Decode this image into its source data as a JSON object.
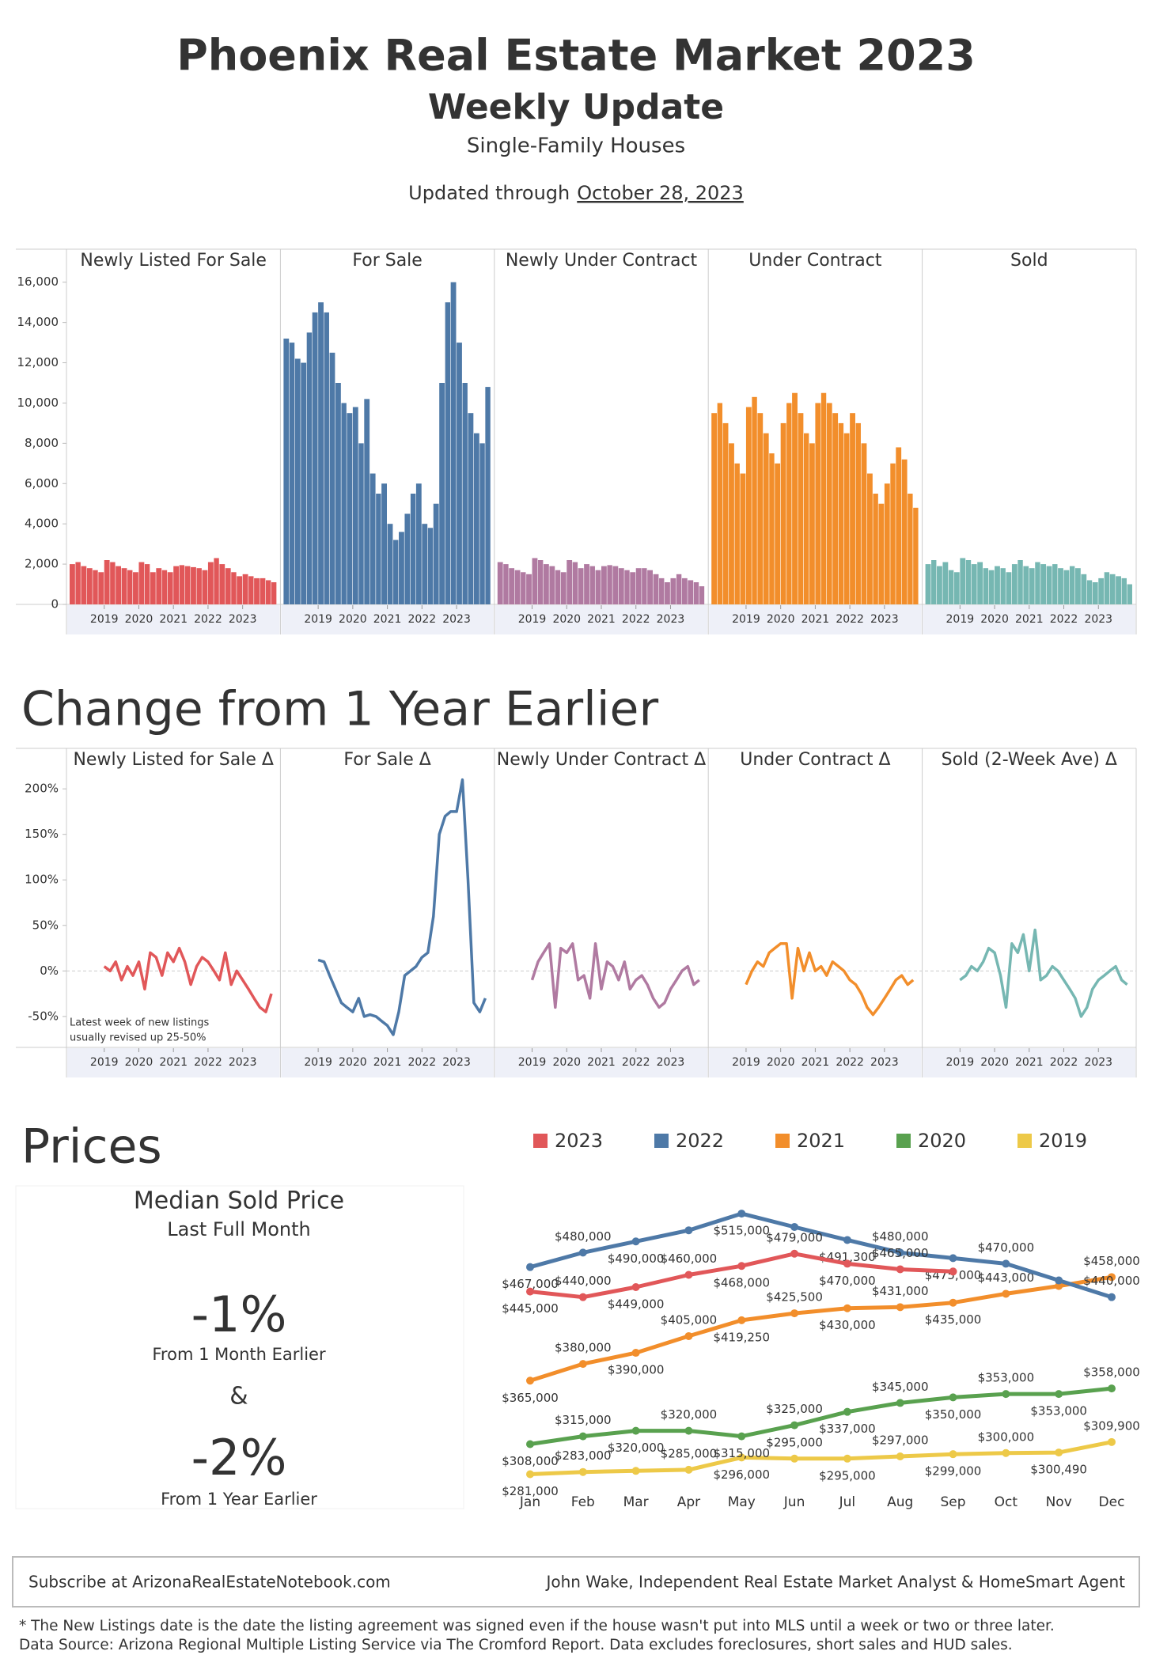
{
  "header": {
    "title": "Phoenix Real Estate Market 2023",
    "subtitle": "Weekly Update",
    "category": "Single-Family Houses",
    "updated_prefix": "Updated through",
    "updated_date": "October 28, 2023"
  },
  "chart_data": [
    {
      "type": "bar",
      "x": [
        2018,
        2018.17,
        2018.33,
        2018.5,
        2018.67,
        2018.83,
        2019,
        2019.17,
        2019.33,
        2019.5,
        2019.67,
        2019.83,
        2020,
        2020.17,
        2020.33,
        2020.5,
        2020.67,
        2020.83,
        2021,
        2021.17,
        2021.33,
        2021.5,
        2021.67,
        2021.83,
        2022,
        2022.17,
        2022.33,
        2022.5,
        2022.67,
        2022.83,
        2023,
        2023.17,
        2023.33,
        2023.5,
        2023.67,
        2023.83
      ],
      "xlim": [
        2018,
        2024
      ],
      "xticks": [
        2019,
        2020,
        2021,
        2022,
        2023
      ],
      "ylim": [
        0,
        16500
      ],
      "yticks": [
        0,
        {
          "value": 2000,
          "label": "2,000"
        },
        {
          "value": 4000,
          "label": "4,000"
        },
        {
          "value": 6000,
          "label": "6,000"
        },
        {
          "value": 8000,
          "label": "8,000"
        },
        {
          "value": 10000,
          "label": "10,000"
        },
        {
          "value": 12000,
          "label": "12,000"
        },
        {
          "value": 14000,
          "label": "14,000"
        },
        {
          "value": 16000,
          "label": "16,000"
        }
      ],
      "series": [
        {
          "name": "Newly Listed For Sale",
          "color": "#e15759",
          "values": [
            2000,
            2100,
            1900,
            1800,
            1700,
            1600,
            2200,
            2100,
            1900,
            1800,
            1700,
            1600,
            2100,
            2000,
            1600,
            1800,
            1700,
            1600,
            1900,
            1950,
            1900,
            1850,
            1800,
            1700,
            2100,
            2300,
            2000,
            1800,
            1600,
            1400,
            1500,
            1400,
            1300,
            1300,
            1200,
            1100
          ]
        },
        {
          "name": "For Sale",
          "color": "#4e79a7",
          "values": [
            13200,
            13000,
            12200,
            12000,
            13500,
            14500,
            15000,
            14500,
            12500,
            11000,
            10000,
            9500,
            9800,
            8000,
            10200,
            6500,
            5500,
            6000,
            4000,
            3200,
            3600,
            4500,
            5500,
            6000,
            4000,
            3800,
            5000,
            11000,
            15000,
            16000,
            13000,
            11000,
            9500,
            8500,
            8000,
            10800
          ]
        },
        {
          "name": "Newly Under Contract",
          "color": "#b07aa1",
          "values": [
            2100,
            2000,
            1800,
            1700,
            1600,
            1500,
            2300,
            2200,
            2000,
            1900,
            1700,
            1600,
            2200,
            2100,
            1800,
            2000,
            1900,
            1700,
            1900,
            1950,
            1900,
            1800,
            1700,
            1600,
            1800,
            1800,
            1700,
            1500,
            1300,
            1100,
            1300,
            1500,
            1300,
            1200,
            1100,
            900
          ]
        },
        {
          "name": "Under Contract",
          "color": "#f28e2b",
          "values": [
            9500,
            10000,
            9000,
            8000,
            7000,
            6500,
            9800,
            10300,
            9500,
            8500,
            7500,
            7000,
            9000,
            10000,
            10500,
            9500,
            8500,
            8000,
            10000,
            10500,
            10000,
            9500,
            9000,
            8500,
            9500,
            9000,
            8000,
            6500,
            5500,
            5000,
            6000,
            7000,
            7800,
            7200,
            5500,
            4800
          ]
        },
        {
          "name": "Sold",
          "color": "#76b7b2",
          "values": [
            2000,
            2200,
            1900,
            2100,
            1700,
            1600,
            2300,
            2200,
            2000,
            2100,
            1800,
            1700,
            1900,
            1800,
            1600,
            2000,
            2200,
            1900,
            1800,
            2100,
            2000,
            1900,
            2000,
            1800,
            1700,
            1900,
            1800,
            1500,
            1200,
            1100,
            1300,
            1600,
            1500,
            1400,
            1300,
            1000
          ]
        }
      ]
    },
    {
      "type": "line",
      "title": "Change from 1 Year Earlier",
      "annotation": [
        "Latest week of new listings",
        "usually revised up 25-50%"
      ],
      "x": [
        2018,
        2018.17,
        2018.33,
        2018.5,
        2018.67,
        2018.83,
        2019,
        2019.17,
        2019.33,
        2019.5,
        2019.67,
        2019.83,
        2020,
        2020.17,
        2020.33,
        2020.5,
        2020.67,
        2020.83,
        2021,
        2021.17,
        2021.33,
        2021.5,
        2021.67,
        2021.83,
        2022,
        2022.17,
        2022.33,
        2022.5,
        2022.67,
        2022.83,
        2023,
        2023.17,
        2023.33,
        2023.5,
        2023.67,
        2023.83
      ],
      "xlim": [
        2018,
        2024
      ],
      "xticks": [
        2019,
        2020,
        2021,
        2022,
        2023
      ],
      "ylim": [
        -84,
        221
      ],
      "yticks": [
        {
          "value": -50,
          "label": "-50%"
        },
        {
          "value": 0,
          "label": "0%"
        },
        {
          "value": 50,
          "label": "50%"
        },
        {
          "value": 100,
          "label": "100%"
        },
        {
          "value": 150,
          "label": "150%"
        },
        {
          "value": 200,
          "label": "200%"
        }
      ],
      "series": [
        {
          "name": "Newly Listed for Sale Δ",
          "color": "#e15759",
          "values": [
            null,
            null,
            null,
            null,
            null,
            null,
            5,
            0,
            10,
            -10,
            5,
            -5,
            10,
            -20,
            20,
            15,
            -5,
            20,
            10,
            25,
            10,
            -15,
            5,
            15,
            10,
            0,
            -10,
            20,
            -15,
            0,
            -10,
            -20,
            -30,
            -40,
            -45,
            -25
          ]
        },
        {
          "name": "For Sale Δ",
          "color": "#4e79a7",
          "values": [
            null,
            null,
            null,
            null,
            null,
            null,
            12,
            10,
            -5,
            -20,
            -35,
            -40,
            -45,
            -30,
            -50,
            -48,
            -50,
            -55,
            -60,
            -70,
            -45,
            -5,
            0,
            5,
            15,
            20,
            60,
            150,
            170,
            175,
            175,
            210,
            100,
            -35,
            -45,
            -30
          ]
        },
        {
          "name": "Newly Under Contract Δ",
          "color": "#b07aa1",
          "values": [
            null,
            null,
            null,
            null,
            null,
            null,
            -10,
            10,
            20,
            30,
            -40,
            25,
            20,
            30,
            -10,
            -5,
            -30,
            30,
            -20,
            10,
            5,
            -10,
            10,
            -20,
            -10,
            -5,
            -15,
            -30,
            -40,
            -35,
            -20,
            -10,
            0,
            5,
            -15,
            -10
          ]
        },
        {
          "name": "Under Contract Δ",
          "color": "#f28e2b",
          "values": [
            null,
            null,
            null,
            null,
            null,
            null,
            -15,
            0,
            10,
            5,
            20,
            25,
            30,
            30,
            -30,
            25,
            0,
            20,
            0,
            5,
            -5,
            10,
            5,
            0,
            -10,
            -15,
            -25,
            -40,
            -48,
            -40,
            -30,
            -20,
            -10,
            -5,
            -15,
            -10
          ]
        },
        {
          "name": "Sold (2-Week Ave) Δ",
          "color": "#76b7b2",
          "values": [
            null,
            null,
            null,
            null,
            null,
            null,
            -10,
            -5,
            5,
            0,
            10,
            25,
            20,
            -5,
            -40,
            30,
            20,
            40,
            0,
            45,
            -10,
            -5,
            5,
            0,
            -10,
            -20,
            -30,
            -50,
            -40,
            -20,
            -10,
            -5,
            0,
            5,
            -10,
            -15
          ]
        }
      ]
    },
    {
      "type": "line",
      "title": "Prices",
      "categories": [
        "Jan",
        "Feb",
        "Mar",
        "Apr",
        "May",
        "Jun",
        "Jul",
        "Aug",
        "Sep",
        "Oct",
        "Nov",
        "Dec"
      ],
      "ylim": [
        270000,
        525000
      ],
      "series": [
        {
          "name": "2023",
          "color": "#e15759",
          "values": [
            445000,
            440000,
            449000,
            460000,
            468000,
            479000,
            470000,
            465000,
            463000,
            null,
            null,
            null
          ],
          "value_labels": [
            "$445,000",
            "$440,000",
            "$449,000",
            "$460,000",
            "$468,000",
            "$479,000",
            "$470,000",
            "$465,000",
            null,
            null,
            null,
            null
          ]
        },
        {
          "name": "2022",
          "color": "#4e79a7",
          "values": [
            467000,
            480000,
            490000,
            500000,
            515000,
            503000,
            491300,
            480000,
            475000,
            470000,
            455000,
            440000
          ],
          "value_labels": [
            "$467,000",
            "$480,000",
            "$490,000",
            null,
            "$515,000",
            null,
            "$491,300",
            "$480,000",
            "$475,000",
            "$470,000",
            null,
            "$440,000"
          ]
        },
        {
          "name": "2021",
          "color": "#f28e2b",
          "values": [
            365000,
            380000,
            390000,
            405000,
            419250,
            425500,
            430000,
            431000,
            435000,
            443000,
            450000,
            458000
          ],
          "value_labels": [
            "$365,000",
            "$380,000",
            "$390,000",
            "$405,000",
            "$419,250",
            "$425,500",
            "$430,000",
            "$431,000",
            "$435,000",
            "$443,000",
            null,
            "$458,000"
          ]
        },
        {
          "name": "2020",
          "color": "#59a14f",
          "values": [
            308000,
            315000,
            320000,
            320000,
            315000,
            325000,
            337000,
            345000,
            350000,
            353000,
            353000,
            358000
          ],
          "value_labels": [
            "$308,000",
            "$315,000",
            "$320,000",
            "$320,000",
            "$315,000",
            "$325,000",
            "$337,000",
            "$345,000",
            "$350,000",
            "$353,000",
            "$353,000",
            "$358,000"
          ]
        },
        {
          "name": "2019",
          "color": "#edc948",
          "values": [
            281000,
            283000,
            284000,
            285000,
            296000,
            295000,
            295000,
            297000,
            299000,
            300000,
            300490,
            309900
          ],
          "value_labels": [
            "$281,000",
            "$283,000",
            null,
            "$285,000",
            "$296,000",
            "$295,000",
            "$295,000",
            "$297,000",
            "$299,000",
            "$300,000",
            "$300,490",
            "$309,900"
          ]
        }
      ]
    }
  ],
  "kpi": {
    "title": "Median Sold Price",
    "subtitle": "Last Full Month",
    "joiner": "&",
    "items": [
      {
        "value": "-1%",
        "label": "From 1 Month Earlier"
      },
      {
        "value": "-2%",
        "label": "From 1 Year Earlier"
      }
    ]
  },
  "footer": {
    "subscribe": "Subscribe at ArizonaRealEstateNotebook.com",
    "author": "John Wake, Independent Real Estate Market Analyst & HomeSmart Agent",
    "notes": [
      "* The New Listings date is the date the listing agreement was signed even if the house wasn't put into MLS until a week or two or three later.",
      "Data Source: Arizona Regional Multiple Listing Service via The Cromford Report. Data excludes foreclosures, short sales and HUD sales."
    ]
  }
}
